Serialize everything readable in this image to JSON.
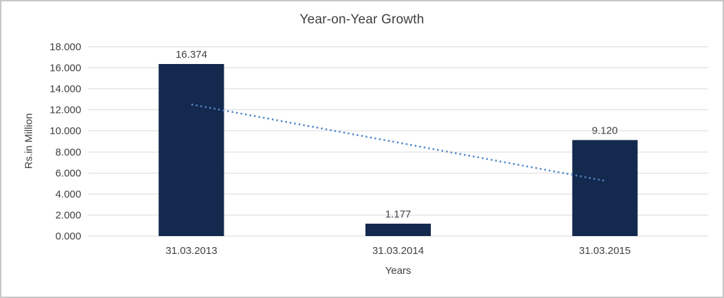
{
  "window": {
    "background": "#ffffff",
    "border_color": "#c6c6c6"
  },
  "chart_data": {
    "type": "bar",
    "title": "Year-on-Year Growth",
    "xlabel": "Years",
    "ylabel": "Rs.in Million",
    "categories": [
      "31.03.2013",
      "31.03.2014",
      "31.03.2015"
    ],
    "values": [
      16.374,
      1.177,
      9.12
    ],
    "value_labels": [
      "16.374",
      "1.177",
      "9.120"
    ],
    "ylim": [
      0,
      18
    ],
    "y_tick_step": 2,
    "y_tick_labels": [
      "0.000",
      "2.000",
      "4.000",
      "6.000",
      "8.000",
      "10.000",
      "12.000",
      "14.000",
      "16.000",
      "18.000"
    ],
    "grid": true,
    "legend": "none",
    "bar_color": "#14294e",
    "gridline_color": "#d9d9d9",
    "text_color": "#404040",
    "trendline": {
      "style": "dotted",
      "color": "#4e87c8",
      "start": {
        "category_index": 0,
        "value": 12.52
      },
      "end": {
        "category_index": 2,
        "value": 5.26
      }
    }
  }
}
